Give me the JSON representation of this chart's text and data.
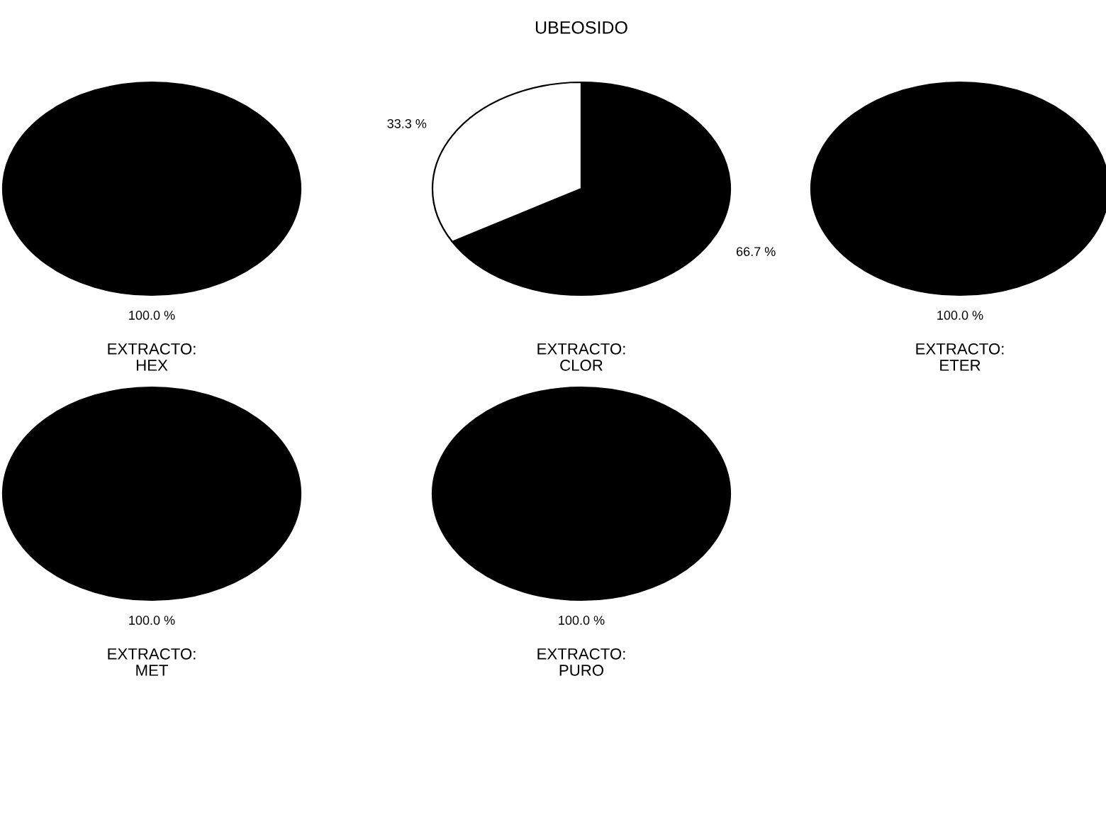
{
  "chart_data": [
    {
      "type": "pie",
      "categories": [
        null
      ],
      "values": [
        100
      ],
      "colors": [
        "#000000"
      ],
      "value_labels": [
        "100.0 %"
      ],
      "xlabel": "EXTRACTO:\nHEX"
    },
    {
      "type": "pie",
      "title": "UBEOSIDO",
      "categories": [
        null,
        null
      ],
      "values": [
        66.7,
        33.3
      ],
      "colors": [
        "#000000",
        "#ffffff"
      ],
      "value_labels": [
        "66.7 %",
        "33.3 %"
      ],
      "xlabel": "EXTRACTO:\nCLOR"
    },
    {
      "type": "pie",
      "categories": [
        null
      ],
      "values": [
        100
      ],
      "colors": [
        "#000000"
      ],
      "value_labels": [
        "100.0 %"
      ],
      "xlabel": "EXTRACTO:\nETER"
    },
    {
      "type": "pie",
      "categories": [
        null
      ],
      "values": [
        100
      ],
      "colors": [
        "#000000"
      ],
      "value_labels": [
        "100.0 %"
      ],
      "xlabel": "EXTRACTO:\nMET"
    },
    {
      "type": "pie",
      "categories": [
        null
      ],
      "values": [
        100
      ],
      "colors": [
        "#000000"
      ],
      "value_labels": [
        "100.0 %"
      ],
      "xlabel": "EXTRACTO:\nPURO"
    }
  ]
}
